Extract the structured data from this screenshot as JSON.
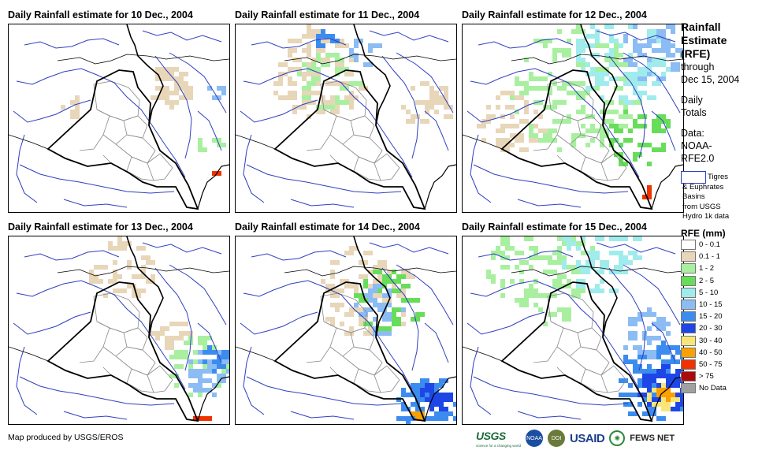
{
  "panels": [
    {
      "title": "Daily Rainfall estimate for 10 Dec., 2004"
    },
    {
      "title": "Daily Rainfall estimate for 11 Dec., 2004"
    },
    {
      "title": "Daily Rainfall estimate for 12 Dec., 2004"
    },
    {
      "title": "Daily Rainfall estimate for 13 Dec., 2004"
    },
    {
      "title": "Daily Rainfall estimate for 14 Dec., 2004"
    },
    {
      "title": "Daily Rainfall estimate for 15 Dec., 2004"
    }
  ],
  "side": {
    "title_lines": [
      "Rainfall",
      "Estimate",
      "(RFE)"
    ],
    "through": "through",
    "date": "Dec 15, 2004",
    "daily": "Daily",
    "totals": "Totals",
    "data_label": "Data:",
    "data_src1": "NOAA-",
    "data_src2": "RFE2.0",
    "basin_lines": [
      "Tigres",
      "& Euphrates",
      "Basins",
      "from USGS",
      "Hydro 1k data"
    ]
  },
  "legend": {
    "title": "RFE (mm)",
    "items": [
      {
        "label": "0 - 0.1",
        "color": "#ffffff"
      },
      {
        "label": "0.1 - 1",
        "color": "#e8d6b8"
      },
      {
        "label": "1 - 2",
        "color": "#a8f0a0"
      },
      {
        "label": "2 - 5",
        "color": "#68dd5a"
      },
      {
        "label": "5 - 10",
        "color": "#a0ecec"
      },
      {
        "label": "10 - 15",
        "color": "#8cbcf4"
      },
      {
        "label": "15 - 20",
        "color": "#3c8cf0"
      },
      {
        "label": "20 - 30",
        "color": "#1e46e6"
      },
      {
        "label": "30 - 40",
        "color": "#fae678"
      },
      {
        "label": "40 - 50",
        "color": "#faa000"
      },
      {
        "label": "50 - 75",
        "color": "#f03200"
      },
      {
        "label": "> 75",
        "color": "#aa0a0a"
      },
      {
        "label": "No Data",
        "color": "#a0a0a0"
      }
    ]
  },
  "footer": {
    "credit": "Map produced by USGS/EROS",
    "logos": {
      "usgs": "USGS",
      "usgs_tagline": "science for a changing world",
      "noaa": "NOAA",
      "doi": "DOI",
      "usaid": "USAID",
      "fews": "FEWS NET"
    }
  }
}
